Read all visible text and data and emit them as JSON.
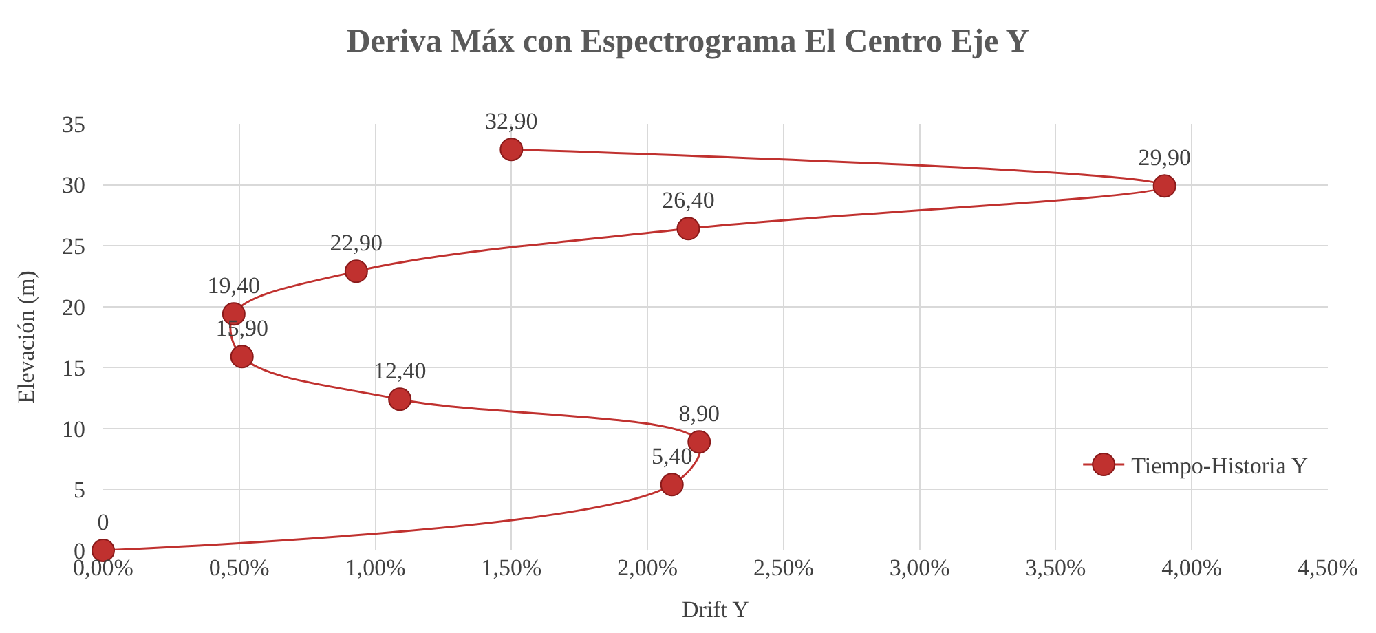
{
  "chart_data": {
    "type": "line",
    "title": "Deriva Máx con Espectrograma El Centro Eje Y",
    "xlabel": "Drift Y",
    "ylabel": "Elevación (m)",
    "series": [
      {
        "name": "Tiempo-Historia Y",
        "color": "#c0312f",
        "x": [
          0,
          2.09,
          2.19,
          1.09,
          0.51,
          0.48,
          0.93,
          2.15,
          3.9,
          1.5
        ],
        "values": [
          0,
          5.4,
          8.9,
          12.4,
          15.9,
          19.4,
          22.9,
          26.4,
          29.9,
          32.9
        ],
        "value_labels": [
          "0",
          "5,40",
          "8,90",
          "12,40",
          "15,90",
          "19,40",
          "22,90",
          "26,40",
          "29,90",
          "32,90"
        ]
      }
    ],
    "xlim": [
      0,
      4.5
    ],
    "xticks": [
      {
        "value": 0,
        "label": "0,00%"
      },
      {
        "value": 0.5,
        "label": "0,50%"
      },
      {
        "value": 1,
        "label": "1,00%"
      },
      {
        "value": 1.5,
        "label": "1,50%"
      },
      {
        "value": 2,
        "label": "2,00%"
      },
      {
        "value": 2.5,
        "label": "2,50%"
      },
      {
        "value": 3,
        "label": "3,00%"
      },
      {
        "value": 3.5,
        "label": "3,50%"
      },
      {
        "value": 4,
        "label": "4,00%"
      },
      {
        "value": 4.5,
        "label": "4,50%"
      }
    ],
    "ylim": [
      0,
      35
    ],
    "yticks": [
      0,
      5,
      10,
      15,
      20,
      25,
      30,
      35
    ],
    "grid": true,
    "legend": "right",
    "marker": "circle",
    "line_style": "solid"
  }
}
